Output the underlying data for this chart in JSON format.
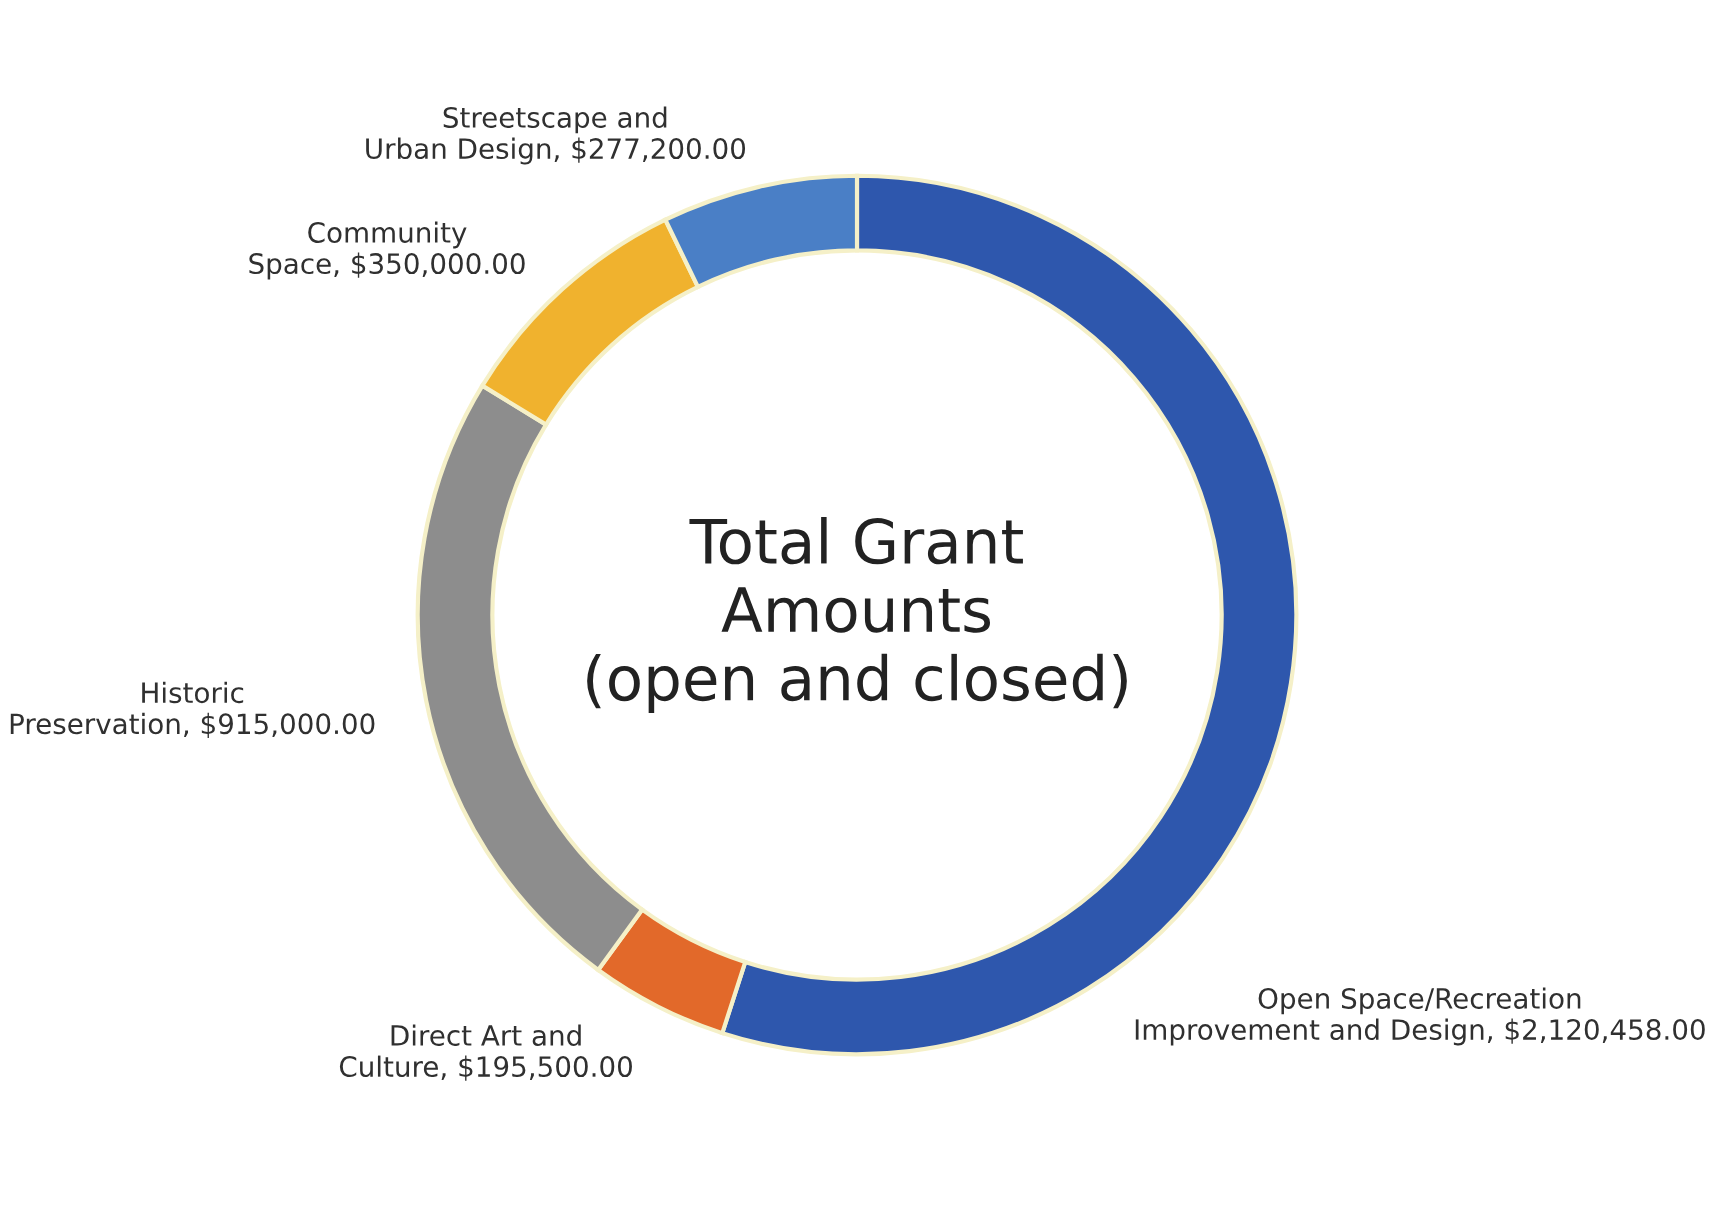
{
  "chart_data": {
    "type": "donut",
    "title": "Total Grant\nAmounts\n(open and closed)",
    "categories": [
      "Open Space/Recreation\nImprovement and Design",
      "Direct Art and\nCulture",
      "Historic\nPreservation",
      "Community\nSpace",
      "Streetscape and\nUrban Design"
    ],
    "values": [
      2120458.0,
      195500.0,
      915000.0,
      350000.0,
      277200.0
    ],
    "value_labels": [
      "$2,120,458.00",
      "$195,500.00",
      "$915,000.00",
      "$350,000.00",
      "$277,200.00"
    ],
    "colors": [
      "#2e57ad",
      "#e2692a",
      "#8d8d8d",
      "#f0b22e",
      "#4a7fc6"
    ],
    "legend": false
  }
}
